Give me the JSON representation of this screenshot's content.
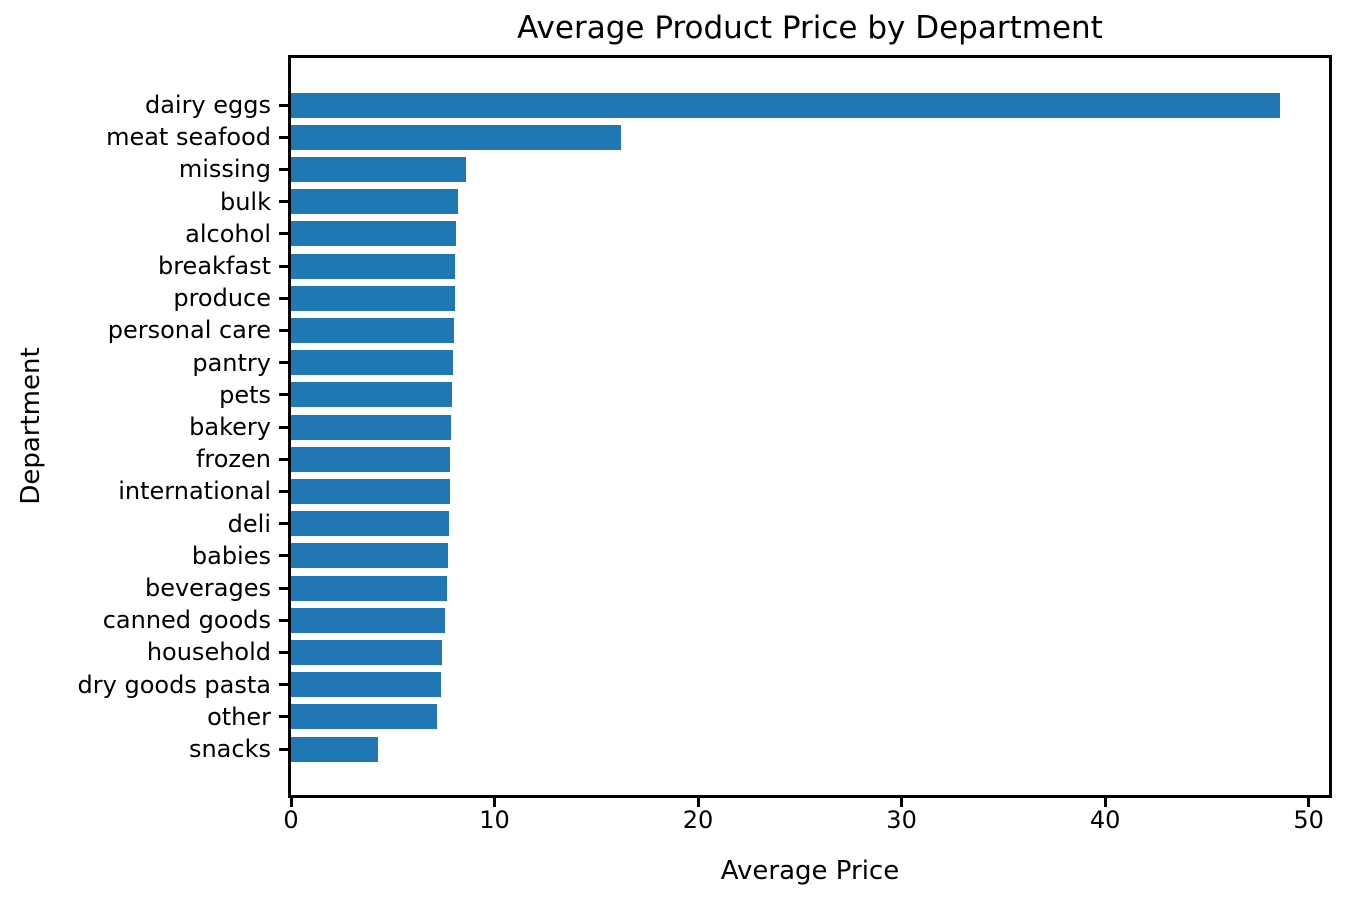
{
  "chart_data": {
    "type": "bar",
    "orientation": "horizontal",
    "title": "Average Product Price by Department",
    "xlabel": "Average Price",
    "ylabel": "Department",
    "categories": [
      "dairy eggs",
      "meat seafood",
      "missing",
      "bulk",
      "alcohol",
      "breakfast",
      "produce",
      "personal care",
      "pantry",
      "pets",
      "bakery",
      "frozen",
      "international",
      "deli",
      "babies",
      "beverages",
      "canned goods",
      "household",
      "dry goods pasta",
      "other",
      "snacks"
    ],
    "values": [
      48.6,
      16.2,
      8.6,
      8.2,
      8.12,
      8.08,
      8.04,
      7.99,
      7.96,
      7.91,
      7.88,
      7.83,
      7.8,
      7.75,
      7.7,
      7.68,
      7.55,
      7.44,
      7.39,
      7.19,
      4.25
    ],
    "xlim": [
      0,
      51
    ],
    "xticks": [
      0,
      10,
      20,
      30,
      40,
      50
    ],
    "grid": false,
    "legend": "none",
    "bar_color": "#1f77b4",
    "text_color": "#000000",
    "spine_color": "#000000"
  }
}
